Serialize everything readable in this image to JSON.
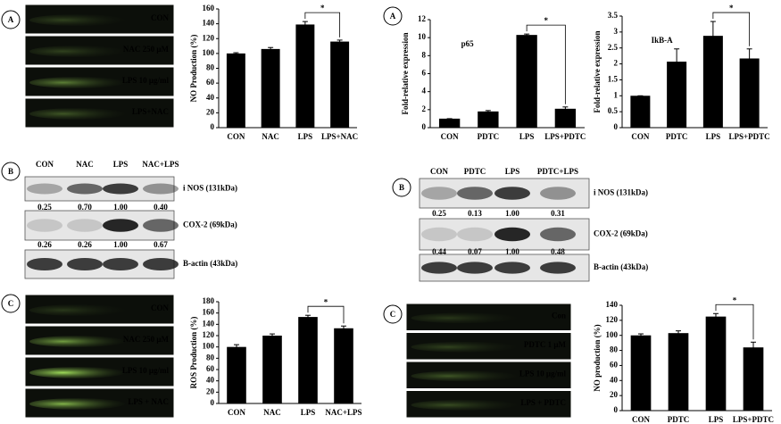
{
  "chart_data": [
    {
      "type": "bar",
      "y_label": "NO Production (%)",
      "categories": [
        "CON",
        "NAC",
        "LPS",
        "LPS+NAC"
      ],
      "values": [
        100,
        106,
        139,
        116
      ],
      "errors": [
        1,
        2,
        4,
        2
      ],
      "color": "#000000",
      "ylim": [
        0,
        160
      ],
      "yticks": [
        0,
        20,
        40,
        60,
        80,
        100,
        120,
        140,
        160
      ],
      "annotation": "*"
    },
    {
      "type": "bar",
      "title": "p65",
      "y_label": "Fold-relative expression",
      "categories": [
        "CON",
        "PDTC",
        "LPS",
        "LPS+PDTC"
      ],
      "values": [
        1,
        1.8,
        10.3,
        2.1
      ],
      "errors": [
        0,
        0.1,
        0.1,
        0.2
      ],
      "color": "#000000",
      "ylim": [
        0,
        12
      ],
      "yticks": [
        0,
        2,
        4,
        6,
        8,
        10,
        12
      ],
      "annotation": "*"
    },
    {
      "type": "bar",
      "title": "IkB-A",
      "y_label": "Fold-relative expression",
      "categories": [
        "CON",
        "PDTC",
        "LPS",
        "LPS+PDTC"
      ],
      "values": [
        1,
        2.07,
        2.88,
        2.17
      ],
      "errors": [
        0,
        0.4,
        0.45,
        0.3
      ],
      "color": "#000000",
      "ylim": [
        0,
        3.5
      ],
      "yticks": [
        0,
        0.5,
        1,
        1.5,
        2,
        2.5,
        3,
        3.5
      ],
      "annotation": "*"
    },
    {
      "type": "bar",
      "y_label": "ROS Production (%)",
      "categories": [
        "CON",
        "NAC",
        "LPS",
        "NAC+LPS"
      ],
      "values": [
        100,
        120,
        153,
        133
      ],
      "errors": [
        4,
        3,
        3,
        4
      ],
      "color": "#000000",
      "ylim": [
        0,
        180
      ],
      "yticks": [
        0,
        20,
        40,
        60,
        80,
        100,
        120,
        140,
        160,
        180
      ],
      "annotation": "*"
    },
    {
      "type": "bar",
      "y_label": "NO production (%)",
      "categories": [
        "CON",
        "PDTC",
        "LPS",
        "LPS+PDTC"
      ],
      "values": [
        100,
        103,
        125,
        84
      ],
      "errors": [
        2,
        3,
        4,
        7
      ],
      "color": "#000000",
      "ylim": [
        0,
        140
      ],
      "yticks": [
        0,
        20,
        40,
        60,
        80,
        100,
        120,
        140
      ],
      "annotation": "*"
    }
  ],
  "panel_letters": [
    "A",
    "A",
    "B",
    "B",
    "C",
    "C"
  ],
  "fish_images": [
    {
      "labels": [
        "CON",
        "NAC 250 μM",
        "LPS 10 μg/ml",
        "LPS+NAC"
      ]
    },
    {
      "labels": [
        "CON",
        "NAC 250 μM",
        "LPS 10 μg/ml",
        "LPS + NAC"
      ]
    },
    {
      "labels": [
        "Con",
        "PDTC 1 μM",
        "LPS 10 μg/ml",
        "LPS + PDTC"
      ]
    }
  ],
  "blots": [
    {
      "headers": [
        "CON",
        "NAC",
        "LPS",
        "NAC+LPS"
      ],
      "rows": [
        {
          "label": "i NOS (131kDa)",
          "values": [
            "0.25",
            "0.70",
            "1.00",
            "0.40"
          ]
        },
        {
          "label": "COX-2 (69kDa)",
          "values": [
            "0.26",
            "0.26",
            "1.00",
            "0.67"
          ]
        },
        {
          "label": "B-actin (43kDa)"
        }
      ]
    },
    {
      "headers": [
        "CON",
        "PDTC",
        "LPS",
        "PDTC+LPS"
      ],
      "rows": [
        {
          "label": "i NOS (131kDa)",
          "values": [
            "0.25",
            "0.13",
            "1.00",
            "0.31"
          ]
        },
        {
          "label": "COX-2 (69kDa)",
          "values": [
            "0.44",
            "0.07",
            "1.00",
            "0.48"
          ]
        },
        {
          "label": "B-actin (43kDa)"
        }
      ]
    }
  ]
}
